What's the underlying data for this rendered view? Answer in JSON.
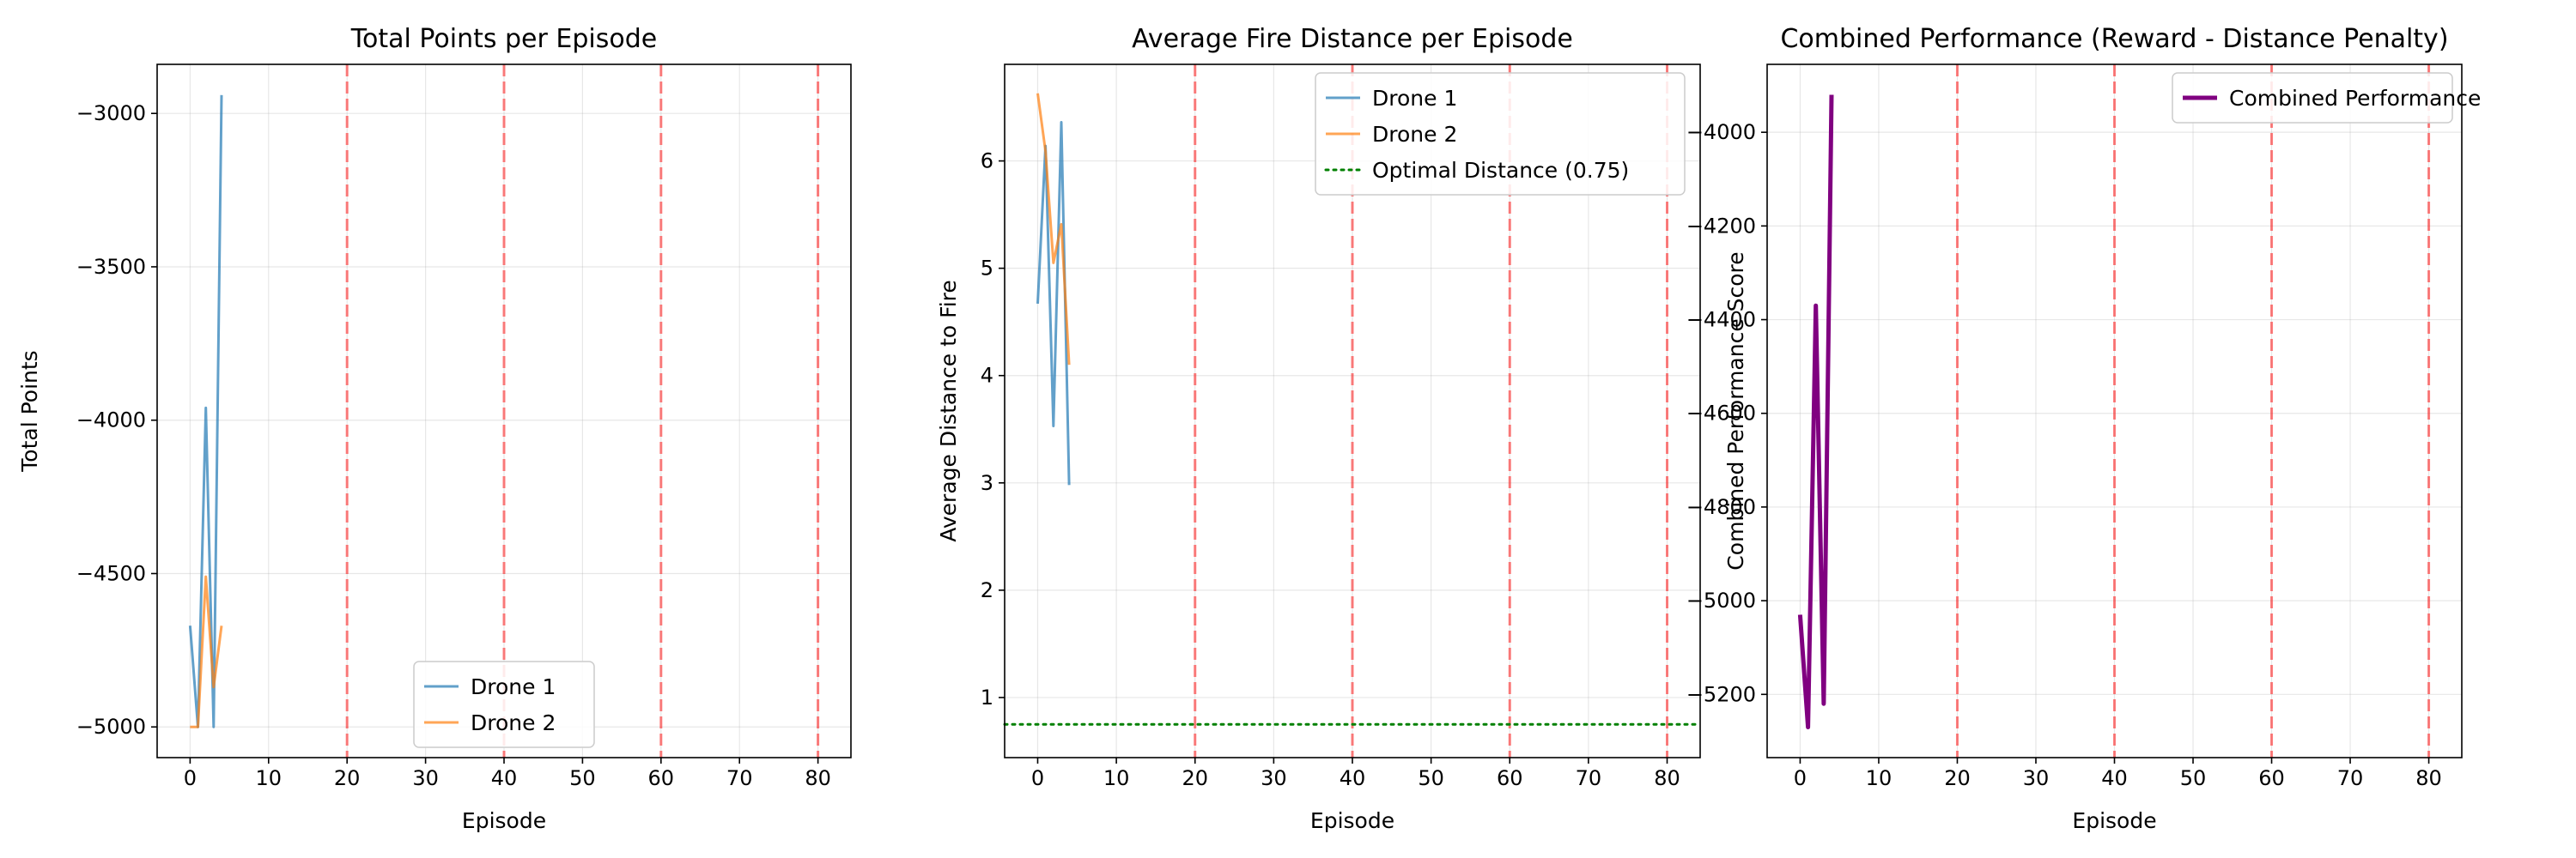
{
  "figure_title": "",
  "colors": {
    "drone1": "#1f77b4",
    "drone2": "#ff7f0e",
    "optimal": "#008000",
    "combined": "#800080",
    "vline": "#ff0000",
    "grid": "#b0b0b0"
  },
  "chart_data": [
    {
      "type": "line",
      "title": "Total Points per Episode",
      "xlabel": "Episode",
      "ylabel": "Total Points",
      "xlim": [
        -4.2,
        84.2
      ],
      "ylim": [
        -5100,
        -2840
      ],
      "xticks": [
        0,
        10,
        20,
        30,
        40,
        50,
        60,
        70,
        80
      ],
      "yticks": [
        -5000,
        -4500,
        -4000,
        -3500,
        -3000
      ],
      "grid": true,
      "legend": "lower-center",
      "vlines": [
        20,
        40,
        60,
        80
      ],
      "series": [
        {
          "name": "Drone 1",
          "color_key": "drone1",
          "opacity": 0.7,
          "x": [
            0,
            1,
            2,
            3,
            4
          ],
          "y": [
            -4670,
            -5000,
            -3960,
            -5000,
            -2940
          ]
        },
        {
          "name": "Drone 2",
          "color_key": "drone2",
          "opacity": 0.7,
          "x": [
            0,
            1,
            2,
            3,
            4
          ],
          "y": [
            -5000,
            -5000,
            -4510,
            -4870,
            -4670
          ]
        }
      ]
    },
    {
      "type": "line",
      "title": "Average Fire Distance per Episode",
      "xlabel": "Episode",
      "ylabel": "Average Distance to Fire",
      "xlim": [
        -4.2,
        84.2
      ],
      "ylim": [
        0.44,
        6.9
      ],
      "xticks": [
        0,
        10,
        20,
        30,
        40,
        50,
        60,
        70,
        80
      ],
      "yticks": [
        1,
        2,
        3,
        4,
        5,
        6
      ],
      "grid": true,
      "legend": "top-right",
      "vlines": [
        20,
        40,
        60,
        80
      ],
      "hlines": [
        {
          "name": "Optimal Distance (0.75)",
          "y": 0.75,
          "color_key": "optimal",
          "style": "dotted"
        }
      ],
      "series": [
        {
          "name": "Drone 1",
          "color_key": "drone1",
          "opacity": 0.7,
          "x": [
            0,
            1,
            2,
            3,
            4
          ],
          "y": [
            4.67,
            6.14,
            3.53,
            6.36,
            2.98
          ]
        },
        {
          "name": "Drone 2",
          "color_key": "drone2",
          "opacity": 0.7,
          "x": [
            0,
            1,
            2,
            3,
            4
          ],
          "y": [
            6.63,
            6.09,
            5.05,
            5.41,
            4.1
          ]
        }
      ]
    },
    {
      "type": "line",
      "title": "Combined Performance (Reward - Distance Penalty)",
      "xlabel": "Episode",
      "ylabel": "Combined Performance Score",
      "xlim": [
        -4.2,
        84.2
      ],
      "ylim": [
        -5335,
        -3855
      ],
      "xticks": [
        0,
        10,
        20,
        30,
        40,
        50,
        60,
        70,
        80
      ],
      "yticks": [
        -5200,
        -5000,
        -4800,
        -4600,
        -4400,
        -4200,
        -4000
      ],
      "grid": true,
      "legend": "top-right",
      "vlines": [
        20,
        40,
        60,
        80
      ],
      "series": [
        {
          "name": "Combined Performance",
          "color_key": "combined",
          "opacity": 1,
          "width": 2.5,
          "x": [
            0,
            1,
            2,
            3,
            4
          ],
          "y": [
            -5030,
            -5270,
            -4370,
            -5220,
            -3920
          ]
        }
      ]
    }
  ]
}
